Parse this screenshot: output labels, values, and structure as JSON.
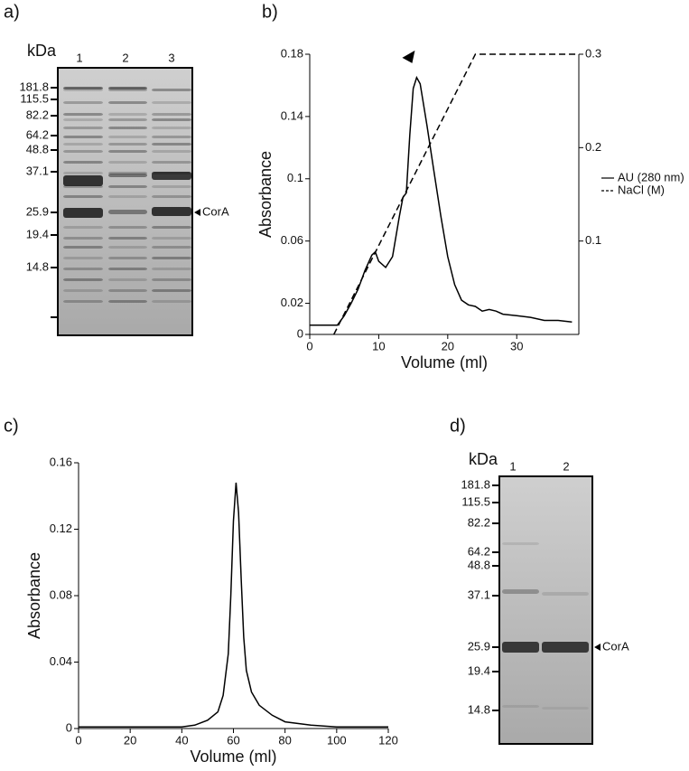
{
  "panel_labels": [
    "a)",
    "b)",
    "c)",
    "d)"
  ],
  "gel_a": {
    "unit": "kDa",
    "lanes": [
      "1",
      "2",
      "3"
    ],
    "markers": [
      "181.8",
      "115.5",
      "82.2",
      "64.2",
      "48.8",
      "37.1",
      "25.9",
      "19.4",
      "14.8"
    ],
    "annotation": "CorA"
  },
  "gel_d": {
    "unit": "kDa",
    "lanes": [
      "1",
      "2"
    ],
    "markers": [
      "181.8",
      "115.5",
      "82.2",
      "64.2",
      "48.8",
      "37.1",
      "25.9",
      "19.4",
      "14.8"
    ],
    "annotation": "CorA"
  },
  "chart_data": [
    {
      "type": "line",
      "x_label": "Volume (ml)",
      "y_label": "Absorbance",
      "xlim": [
        0,
        39
      ],
      "xticks": [
        0,
        10,
        20,
        30
      ],
      "ylim": [
        0,
        0.18
      ],
      "yticks": [
        0,
        0.02,
        0.06,
        0.1,
        0.14,
        0.18
      ],
      "y2lim": [
        0,
        0.3
      ],
      "y2ticks": [
        0.1,
        0.2,
        0.3
      ],
      "legend": "right",
      "series": [
        {
          "name": "AU (280 nm)",
          "color": "#000000",
          "dash": "solid",
          "x": [
            0,
            3,
            4,
            5,
            6,
            7,
            8,
            9,
            9.5,
            10,
            11,
            12,
            13,
            13.5,
            14,
            14.5,
            15,
            15.5,
            16,
            17,
            18,
            19,
            20,
            21,
            22,
            23,
            24,
            25,
            26,
            27,
            28,
            30,
            32,
            34,
            36,
            38
          ],
          "values": [
            0.006,
            0.006,
            0.006,
            0.012,
            0.02,
            0.029,
            0.041,
            0.051,
            0.053,
            0.047,
            0.043,
            0.05,
            0.076,
            0.088,
            0.091,
            0.128,
            0.158,
            0.165,
            0.161,
            0.134,
            0.105,
            0.076,
            0.05,
            0.032,
            0.022,
            0.019,
            0.018,
            0.015,
            0.016,
            0.015,
            0.013,
            0.012,
            0.011,
            0.009,
            0.009,
            0.008
          ]
        },
        {
          "name": "NaCl (M)",
          "color": "#000000",
          "dash": "dashed",
          "axis": "y2",
          "x": [
            3.5,
            24,
            39
          ],
          "values": [
            0,
            0.3,
            0.3
          ]
        }
      ]
    },
    {
      "type": "line",
      "x_label": "Volume (ml)",
      "y_label": "Absorbance",
      "xlim": [
        0,
        120
      ],
      "xticks": [
        0,
        20,
        40,
        60,
        80,
        100,
        120
      ],
      "ylim": [
        0,
        0.16
      ],
      "yticks": [
        0,
        0.04,
        0.08,
        0.12,
        0.16
      ],
      "series": [
        {
          "color": "#000000",
          "dash": "solid",
          "x": [
            0,
            20,
            40,
            45,
            50,
            54,
            56,
            58,
            59,
            60,
            61,
            62,
            63,
            64,
            65,
            67,
            70,
            75,
            80,
            90,
            100,
            120
          ],
          "values": [
            0.001,
            0.001,
            0.001,
            0.002,
            0.005,
            0.01,
            0.02,
            0.045,
            0.08,
            0.125,
            0.148,
            0.13,
            0.09,
            0.055,
            0.035,
            0.022,
            0.014,
            0.008,
            0.004,
            0.002,
            0.001,
            0.001
          ]
        }
      ]
    }
  ]
}
